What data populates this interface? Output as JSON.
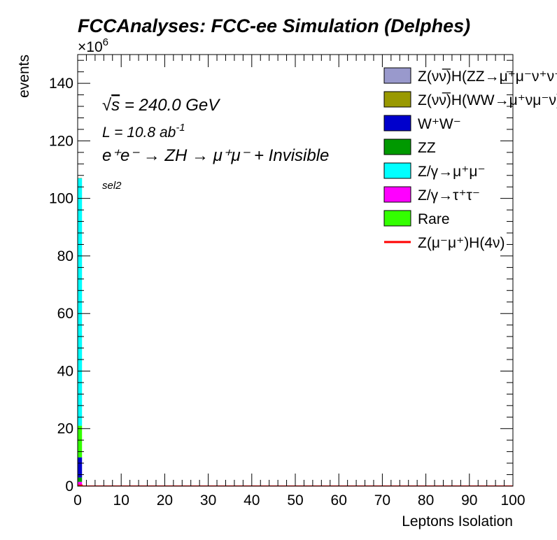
{
  "chart_data": {
    "type": "bar",
    "title": "FCCAnalyses: FCC-ee Simulation (Delphes)",
    "xlabel": "Leptons Isolation",
    "ylabel": "events",
    "y_multiplier": "×10",
    "y_multiplier_exp": "6",
    "xlim": [
      0,
      100
    ],
    "ylim": [
      0,
      150
    ],
    "x_ticks": [
      0,
      10,
      20,
      30,
      40,
      50,
      60,
      70,
      80,
      90,
      100
    ],
    "y_ticks": [
      0,
      20,
      40,
      60,
      80,
      100,
      120,
      140
    ],
    "annotations": {
      "sqrt_s_root": "√",
      "sqrt_s_var": "s",
      "sqrt_s_value": " = 240.0 GeV",
      "lumi_prefix": "L = 10.8 ab",
      "lumi_exp": "-1",
      "process": "e⁺e⁻ → ZH → μ⁺μ⁻ + Invisible",
      "selection": "sel2"
    },
    "bins": [
      {
        "x_low": 0,
        "x_high": 1
      }
    ],
    "stack": [
      {
        "name": "Z/γ→τ⁺τ⁻",
        "color": "#ff00ff",
        "values": [
          1.5
        ]
      },
      {
        "name": "ZZ",
        "color": "#009900",
        "values": [
          1.5
        ]
      },
      {
        "name": "W⁺W⁻",
        "color": "#0000cc",
        "values": [
          7.0
        ]
      },
      {
        "name": "Rare",
        "color": "#33ff00",
        "values": [
          11.0
        ]
      },
      {
        "name": "Z/γ→μ⁺μ⁻",
        "color": "#00ffff",
        "values": [
          86.0
        ]
      },
      {
        "name": "Z(νν̅)H(WW→μ⁺νμ⁻ν)",
        "color": "#999900",
        "values": [
          0.1
        ]
      },
      {
        "name": "Z(νν̅)H(ZZ→μ⁺μ⁻ν⁺ν⁻)",
        "color": "#9999cc",
        "values": [
          0.05
        ]
      }
    ],
    "signal": {
      "name": "Z(μ⁻μ⁺)H(4ν)",
      "color": "#ff0000",
      "values": [
        0.3
      ]
    },
    "legend_placement": "top-right",
    "legend": [
      {
        "label": "Z(νν̅)H(ZZ→μ⁺μ⁻ν⁺ν⁻)",
        "color": "#9999cc",
        "kind": "box"
      },
      {
        "label": "Z(νν̅)H(WW→μ⁺νμ⁻ν)",
        "color": "#999900",
        "kind": "box"
      },
      {
        "label": "W⁺W⁻",
        "color": "#0000cc",
        "kind": "box"
      },
      {
        "label": "ZZ",
        "color": "#009900",
        "kind": "box"
      },
      {
        "label": "Z/γ→μ⁺μ⁻",
        "color": "#00ffff",
        "kind": "box"
      },
      {
        "label": "Z/γ→τ⁺τ⁻",
        "color": "#ff00ff",
        "kind": "box"
      },
      {
        "label": "Rare",
        "color": "#33ff00",
        "kind": "box"
      },
      {
        "label": "Z(μ⁻μ⁺)H(4ν)",
        "color": "#ff0000",
        "kind": "line"
      }
    ]
  }
}
